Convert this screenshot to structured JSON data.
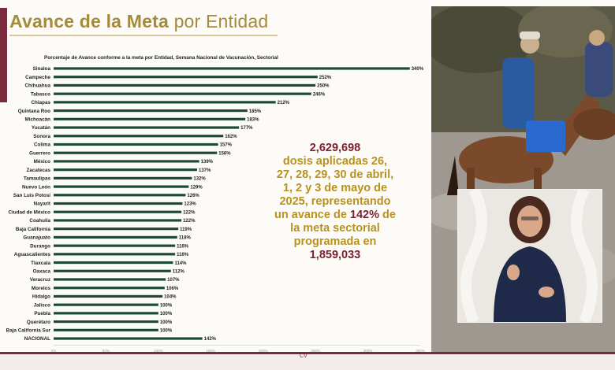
{
  "header": {
    "title_bold": "Avance de la Meta",
    "title_rest": "por Entidad"
  },
  "chart_data": {
    "type": "bar",
    "orientation": "horizontal",
    "title": "Porcentaje de Avance conforme a la meta por Entidad, Semana Nacional de Vacunación, Sectorial",
    "categories": [
      "Sinaloa",
      "Campeche",
      "Chihuahua",
      "Tabasco",
      "Chiapas",
      "Quintana Roo",
      "Michoacán",
      "Yucatán",
      "Sonora",
      "Colima",
      "Guerrero",
      "México",
      "Zacatecas",
      "Tamaulipas",
      "Nuevo León",
      "San Luis Potosí",
      "Nayarit",
      "Ciudad de México",
      "Coahuila",
      "Baja California",
      "Guanajuato",
      "Durango",
      "Aguascalientes",
      "Tlaxcala",
      "Oaxaca",
      "Veracruz",
      "Morelos",
      "Hidalgo",
      "Jalisco",
      "Puebla",
      "Querétaro",
      "Baja California Sur",
      "NACIONAL"
    ],
    "values": [
      340,
      252,
      250,
      246,
      212,
      185,
      183,
      177,
      162,
      157,
      156,
      139,
      137,
      132,
      129,
      126,
      123,
      122,
      122,
      119,
      118,
      116,
      116,
      114,
      112,
      107,
      106,
      104,
      100,
      100,
      100,
      100,
      142
    ],
    "value_labels": [
      "340%",
      "252%",
      "250%",
      "246%",
      "212%",
      "185%",
      "183%",
      "177%",
      "162%",
      "157%",
      "156%",
      "139%",
      "137%",
      "132%",
      "129%",
      "126%",
      "123%",
      "122%",
      "122%",
      "119%",
      "118%",
      "116%",
      "116%",
      "114%",
      "112%",
      "107%",
      "106%",
      "104%",
      "100%",
      "100%",
      "100%",
      "100%",
      "142%"
    ],
    "x_ticks": [
      "0%",
      "50%",
      "100%",
      "150%",
      "200%",
      "250%",
      "300%",
      "350%"
    ],
    "xlim": [
      0,
      350
    ],
    "bar_color": "#1e4a3a",
    "grid": false
  },
  "summary": {
    "line1": "2,629,698",
    "line2": "dosis aplicadas 26,",
    "line3": "27, 28, 29, 30 de abril,",
    "line4": "1, 2 y 3 de mayo de",
    "line5": "2025, representando",
    "line6a": "un avance de ",
    "line6b": "142%",
    "line6c": " de",
    "line7": "la meta sectorial",
    "line8": "programada en",
    "line9": "1,859,033"
  },
  "footer": {
    "mark": "CV"
  }
}
